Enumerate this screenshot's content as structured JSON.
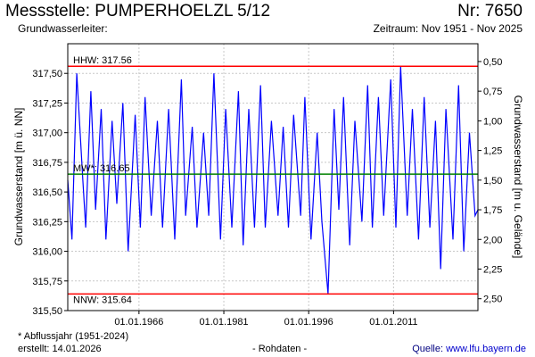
{
  "header": {
    "title": "Messstelle: PUMPERHOELZL 5/12",
    "nr": "Nr: 7650",
    "aquifer_label": "Grundwasserleiter:",
    "period": "Zeitraum: Nov 1951 - Nov 2025"
  },
  "footer": {
    "footnote": "* Abflussjahr (1951-2024)",
    "created": "erstellt:  14.01.2026",
    "data_type": "- Rohdaten -",
    "source_label": "Quelle: ",
    "source_link": "www.lfu.bayern.de"
  },
  "colors": {
    "series": "#0000ff",
    "extreme_lines": "#ff0000",
    "mean_line": "#008000",
    "grid": "#c8c8c8"
  },
  "chart_data": {
    "type": "line",
    "title": "",
    "ylabel": "Grundwasserstand [m ü. NN]",
    "ylabel_right": "Grundwasserstand [m u. Gelände]",
    "ylim": [
      315.5,
      317.75
    ],
    "ylim_right": [
      2.6,
      0.35
    ],
    "xlim": [
      "1953-06-01",
      "2025-11-30"
    ],
    "grid": true,
    "y_ticks": [
      "315,50",
      "315,75",
      "316,00",
      "316,25",
      "316,50",
      "316,75",
      "317,00",
      "317,25",
      "317,50"
    ],
    "y_tick_values": [
      315.5,
      315.75,
      316.0,
      316.25,
      316.5,
      316.75,
      317.0,
      317.25,
      317.5
    ],
    "y_ticks_right": [
      "0,50",
      "0,75",
      "1,00",
      "1,25",
      "1,50",
      "1,75",
      "2,00",
      "2,25",
      "2,50"
    ],
    "y_tick_values_right": [
      0.5,
      0.75,
      1.0,
      1.25,
      1.5,
      1.75,
      2.0,
      2.25,
      2.5
    ],
    "x_ticks": [
      "01.01.1966",
      "01.01.1981",
      "01.01.1996",
      "01.01.2011"
    ],
    "x_tick_values": [
      "1966-01-01",
      "1981-01-01",
      "1996-01-01",
      "2011-01-01"
    ],
    "reference_lines": [
      {
        "label": "HHW: 317.56",
        "value": 317.56
      },
      {
        "label": "MW*: 316.65",
        "value": 316.65
      },
      {
        "label": "NNW: 315.64",
        "value": 315.64
      }
    ],
    "series": [
      {
        "x": [
          "1953-06-01",
          "1954-03-01",
          "1955-01-01",
          "1956-02-01",
          "1956-08-01",
          "1957-07-01",
          "1958-05-01",
          "1959-05-01",
          "1960-03-01",
          "1961-04-01",
          "1962-02-01",
          "1963-03-01",
          "1964-02-01",
          "1965-05-01",
          "1966-04-01",
          "1967-02-01",
          "1968-03-01",
          "1969-04-01",
          "1970-03-01",
          "1971-04-01",
          "1972-05-01",
          "1973-07-01",
          "1974-04-01",
          "1975-06-01",
          "1976-04-01",
          "1977-06-01",
          "1978-05-01",
          "1979-04-01",
          "1980-06-01",
          "1981-05-01",
          "1982-06-01",
          "1983-08-01",
          "1984-06-01",
          "1985-06-01",
          "1986-06-01",
          "1987-07-01",
          "1988-05-01",
          "1989-06-01",
          "1990-08-01",
          "1991-07-01",
          "1992-06-01",
          "1993-05-01",
          "1994-08-01",
          "1995-05-01",
          "1996-06-01",
          "1997-07-01",
          "1998-05-01",
          "1999-06-01",
          "2000-07-01",
          "2001-05-01",
          "2002-03-01",
          "2003-04-01",
          "2004-03-01",
          "2005-06-01",
          "2006-06-01",
          "2007-04-01",
          "2008-05-01",
          "2009-04-01",
          "2010-07-01",
          "2011-06-01",
          "2012-04-01",
          "2013-06-01",
          "2014-05-01",
          "2015-06-01",
          "2016-06-01",
          "2017-06-01",
          "2018-06-01",
          "2019-05-01",
          "2020-04-01",
          "2021-07-01",
          "2022-07-01",
          "2023-06-01",
          "2024-06-01",
          "2025-06-01",
          "2025-11-30"
        ],
        "y": [
          316.6,
          316.1,
          317.5,
          316.6,
          316.2,
          317.35,
          316.35,
          317.2,
          316.1,
          317.1,
          316.4,
          317.25,
          316.0,
          317.15,
          316.2,
          317.3,
          316.3,
          317.1,
          316.2,
          317.2,
          316.1,
          317.45,
          316.3,
          317.05,
          316.2,
          317.0,
          316.3,
          317.5,
          316.1,
          317.2,
          316.2,
          317.35,
          316.05,
          317.2,
          316.2,
          317.4,
          316.2,
          317.1,
          316.3,
          317.05,
          316.2,
          317.15,
          316.3,
          317.3,
          316.1,
          317.0,
          316.25,
          315.64,
          317.2,
          316.35,
          317.3,
          316.05,
          317.1,
          316.25,
          317.4,
          316.2,
          317.3,
          316.3,
          317.45,
          316.2,
          317.56,
          316.3,
          317.2,
          316.1,
          317.3,
          316.2,
          317.1,
          315.85,
          317.2,
          316.1,
          317.4,
          316.0,
          317.0,
          316.3,
          316.35
        ]
      }
    ]
  }
}
